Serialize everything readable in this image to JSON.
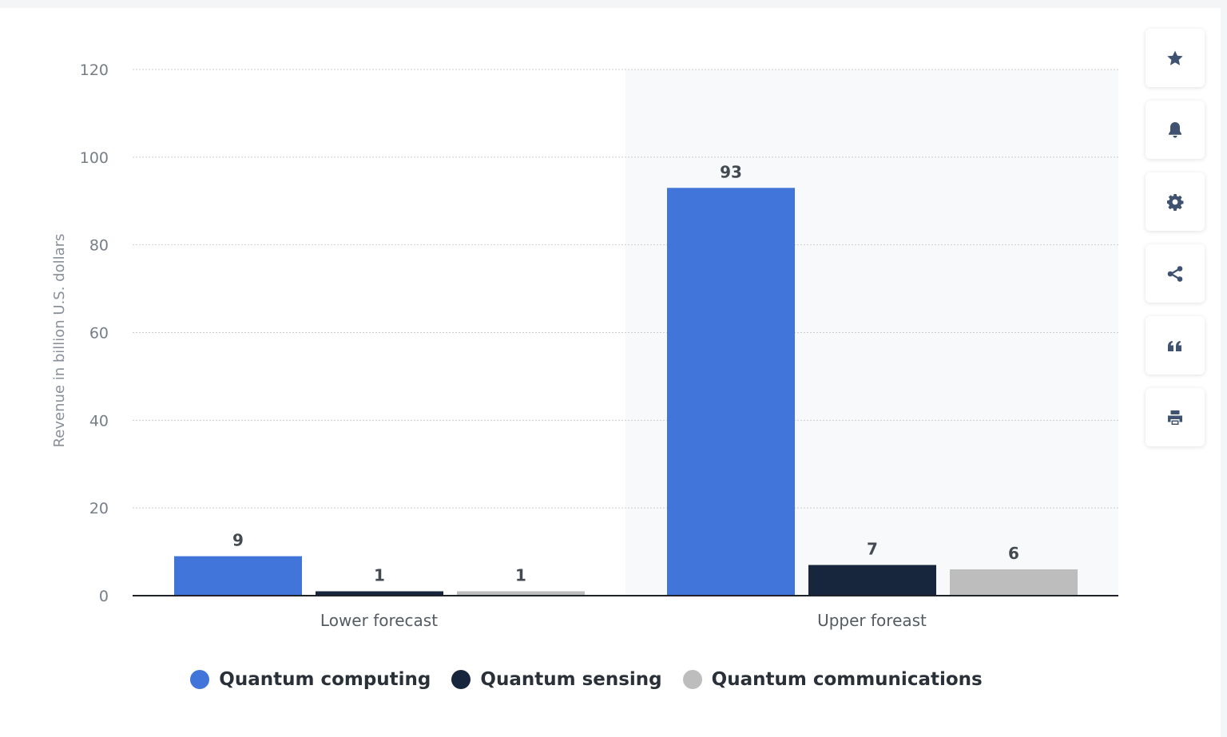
{
  "chart_data": {
    "type": "bar",
    "categories": [
      "Lower forecast",
      "Upper foreast"
    ],
    "series": [
      {
        "name": "Quantum computing",
        "values": [
          9,
          93
        ],
        "color": "#4175d9"
      },
      {
        "name": "Quantum sensing",
        "values": [
          1,
          7
        ],
        "color": "#17263c"
      },
      {
        "name": "Quantum communications",
        "values": [
          1,
          6
        ],
        "color": "#bdbdbd"
      }
    ],
    "ylabel": "Revenue in billion U.S. dollars",
    "ylim": [
      0,
      120
    ],
    "yticks": [
      0,
      20,
      40,
      60,
      80,
      100,
      120
    ],
    "grid": true,
    "legend_position": "bottom",
    "highlighted_category": "Upper foreast"
  },
  "legend": {
    "items": [
      {
        "label": "Quantum computing",
        "color": "#4175d9"
      },
      {
        "label": "Quantum sensing",
        "color": "#17263c"
      },
      {
        "label": "Quantum communications",
        "color": "#bdbdbd"
      }
    ]
  },
  "toolbar": {
    "buttons": [
      {
        "name": "favorite-button",
        "icon": "star-icon"
      },
      {
        "name": "notification-button",
        "icon": "bell-icon"
      },
      {
        "name": "settings-button",
        "icon": "gear-icon"
      },
      {
        "name": "share-button",
        "icon": "share-icon"
      },
      {
        "name": "cite-button",
        "icon": "quote-icon"
      },
      {
        "name": "print-button",
        "icon": "printer-icon"
      }
    ],
    "icon_color": "#3f5370"
  }
}
